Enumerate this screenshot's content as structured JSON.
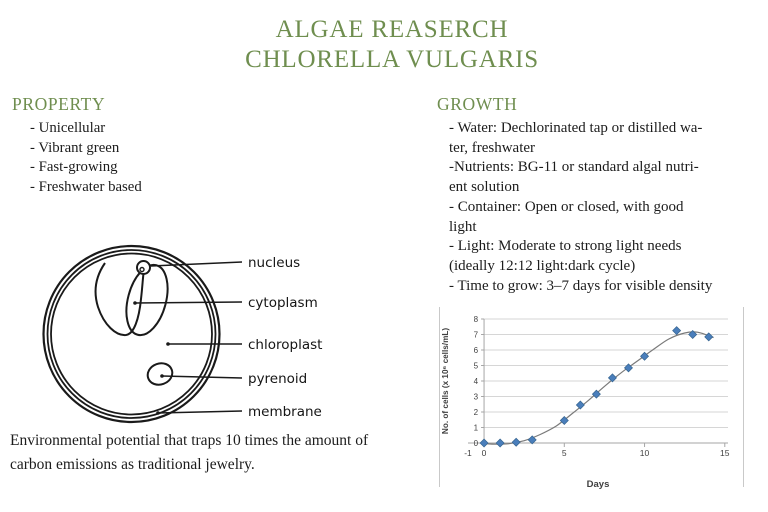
{
  "title": {
    "line1": "ALGAE REASERCH",
    "line2": "CHLORELLA VULGARIS",
    "color": "#6f8e4f"
  },
  "property": {
    "heading": "PROPERTY",
    "items": [
      "- Unicellular",
      "- Vibrant green",
      "- Fast-growing",
      "- Freshwater based"
    ]
  },
  "growth": {
    "heading": "GROWTH",
    "lines": [
      "- Water: Dechlorinated tap or distilled wa-",
      "ter, freshwater",
      "-Nutrients: BG-11 or standard algal nutri-",
      "ent solution",
      "- Container: Open or closed, with good",
      "light",
      "- Light: Moderate to strong light needs",
      "(ideally 12:12 light:dark cycle)",
      "- Time to grow: 3–7 days for visible density"
    ]
  },
  "diagram": {
    "labels": [
      "nucleus",
      "cytoplasm",
      "chloroplast",
      "pyrenoid",
      "membrane"
    ]
  },
  "footnote": {
    "lines": [
      "Environmental potential that traps 10 times the amount of",
      "carbon emissions as traditional jewelry."
    ]
  },
  "chart_data": {
    "type": "scatter",
    "title": "",
    "xlabel": "Days",
    "ylabel": "No. of cells (x 10⁶ cells/mL)",
    "x": [
      0,
      1,
      2,
      3,
      5,
      6,
      7,
      8,
      9,
      10,
      12,
      13,
      14
    ],
    "y": [
      0,
      0,
      0.05,
      0.2,
      1.45,
      2.45,
      3.15,
      4.2,
      4.85,
      5.6,
      7.25,
      7.0,
      6.85
    ],
    "trend": [
      [
        -0.1,
        0.0
      ],
      [
        0.5,
        -0.07
      ],
      [
        1.5,
        -0.05
      ],
      [
        2.5,
        0.15
      ],
      [
        3.5,
        0.55
      ],
      [
        4.5,
        1.1
      ],
      [
        5.5,
        1.9
      ],
      [
        6.5,
        2.75
      ],
      [
        7.5,
        3.65
      ],
      [
        8.5,
        4.5
      ],
      [
        9.5,
        5.25
      ],
      [
        10.5,
        6.0
      ],
      [
        11.5,
        6.7
      ],
      [
        12.5,
        7.1
      ],
      [
        13.3,
        7.15
      ],
      [
        14.3,
        6.8
      ]
    ],
    "xlim": [
      -1,
      15.2
    ],
    "ylim": [
      0,
      8
    ],
    "x_ticks": [
      -1,
      0,
      5,
      10,
      15
    ],
    "y_ticks": [
      0,
      1,
      2,
      3,
      4,
      5,
      6,
      7,
      8
    ],
    "x_tickmarks": [
      5,
      10,
      15
    ],
    "grid": true,
    "legend": false,
    "marker_color": "#4a7ebb",
    "marker_stroke": "#36648f",
    "line_color": "#7a7a7a",
    "grid_color": "#d6d6d6",
    "axis_color": "#a6a6a6",
    "text_color": "#3f3f3f"
  }
}
